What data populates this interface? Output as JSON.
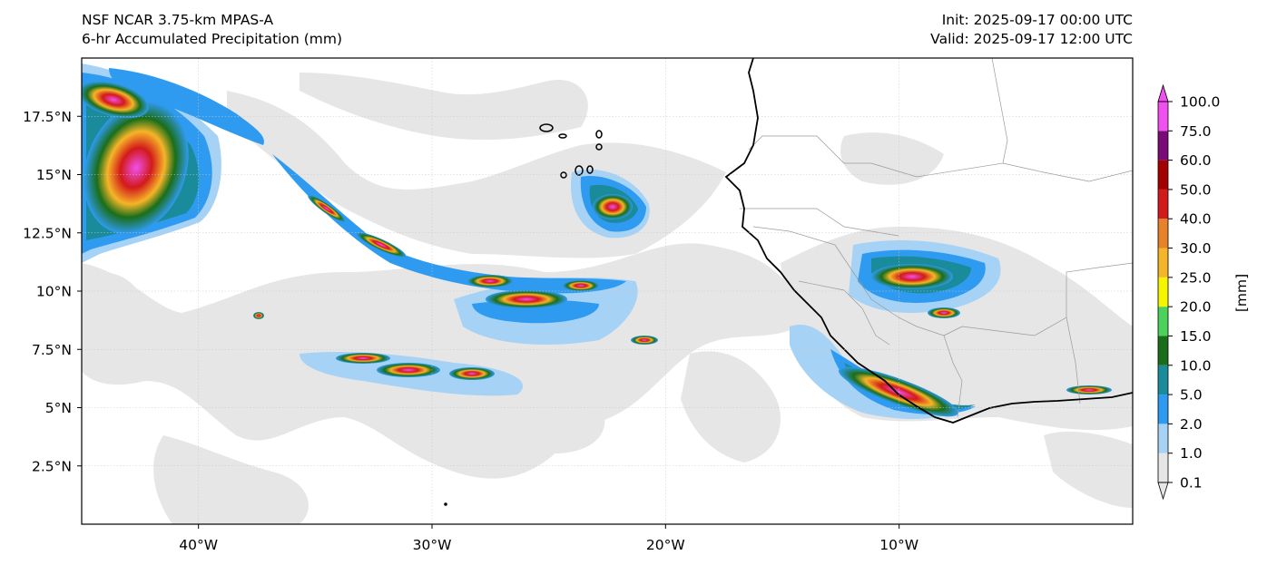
{
  "header": {
    "left_line1": "NSF NCAR 3.75-km MPAS-A",
    "left_line2": "6-hr Accumulated Precipitation (mm)",
    "right_line1": "Init: 2025-09-17 00:00 UTC",
    "right_line2": "Valid: 2025-09-17 12:00 UTC"
  },
  "map": {
    "lon_range": [
      -45,
      0
    ],
    "lat_range": [
      0,
      20
    ],
    "lon_ticks": [
      {
        "value": -40,
        "label": "40°W"
      },
      {
        "value": -30,
        "label": "30°W"
      },
      {
        "value": -20,
        "label": "20°W"
      },
      {
        "value": -10,
        "label": "10°W"
      }
    ],
    "lat_ticks": [
      {
        "value": 2.5,
        "label": "2.5°N"
      },
      {
        "value": 5,
        "label": "5°N"
      },
      {
        "value": 7.5,
        "label": "7.5°N"
      },
      {
        "value": 10,
        "label": "10°N"
      },
      {
        "value": 12.5,
        "label": "12.5°N"
      },
      {
        "value": 15,
        "label": "15°N"
      },
      {
        "value": 17.5,
        "label": "17.5°N"
      }
    ]
  },
  "colorbar": {
    "unit_label": "[mm]",
    "levels": [
      "0.1",
      "1.0",
      "2.0",
      "5.0",
      "10.0",
      "15.0",
      "20.0",
      "25.0",
      "30.0",
      "40.0",
      "50.0",
      "60.0",
      "75.0",
      "100.0"
    ],
    "colors": [
      "#e6e6e6",
      "#a6d2f5",
      "#2f9bf0",
      "#1a8b9b",
      "#1a6e1a",
      "#4ad25a",
      "#f5f500",
      "#f5b528",
      "#e8822a",
      "#d21a1a",
      "#a50000",
      "#7a0a78",
      "#f050f0"
    ]
  }
}
